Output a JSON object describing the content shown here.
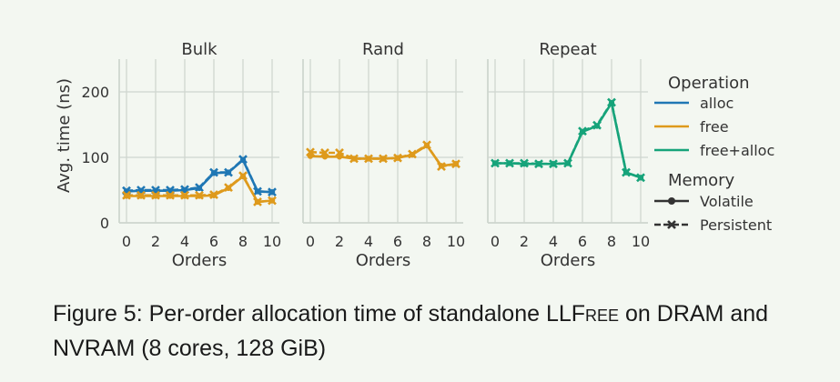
{
  "colors": {
    "background": "#f3f7f1",
    "grid": "#cfd6cf",
    "axis_text": "#333333",
    "alloc": "#1f77b4",
    "free": "#de9a1c",
    "free_alloc": "#16a37a"
  },
  "chart_data": {
    "type": "line",
    "ylabel": "Avg. time (ns)",
    "yticks": [
      0,
      100,
      200
    ],
    "ylim": [
      0,
      250
    ],
    "xticks": [
      0,
      2,
      4,
      6,
      8,
      10
    ],
    "xlim": [
      -0.5,
      10.5
    ],
    "grid": true,
    "panels": [
      {
        "title": "Bulk",
        "xlabel": "Orders",
        "series": [
          {
            "operation": "alloc",
            "memory": "Volatile",
            "x": [
              0,
              1,
              2,
              3,
              4,
              5,
              6,
              7,
              8,
              9,
              10
            ],
            "values": [
              48,
              49,
              49,
              49,
              50,
              53,
              76,
              77,
              96,
              48,
              47
            ]
          },
          {
            "operation": "alloc",
            "memory": "Persistent",
            "x": [
              0,
              1,
              2,
              3,
              4,
              5,
              6,
              7,
              8,
              9,
              10
            ],
            "values": [
              49,
              50,
              50,
              50,
              51,
              54,
              77,
              77,
              97,
              48,
              47
            ]
          },
          {
            "operation": "free",
            "memory": "Volatile",
            "x": [
              0,
              1,
              2,
              3,
              4,
              5,
              6,
              7,
              8,
              9,
              10
            ],
            "values": [
              41,
              41,
              41,
              41,
              41,
              41,
              42,
              53,
              71,
              32,
              34
            ]
          },
          {
            "operation": "free",
            "memory": "Persistent",
            "x": [
              0,
              1,
              2,
              3,
              4,
              5,
              6,
              7,
              8,
              9,
              10
            ],
            "values": [
              42,
              42,
              42,
              42,
              42,
              42,
              43,
              54,
              72,
              32,
              34
            ]
          }
        ]
      },
      {
        "title": "Rand",
        "xlabel": "Orders",
        "series": [
          {
            "operation": "free",
            "memory": "Volatile",
            "x": [
              0,
              1,
              2,
              3,
              4,
              5,
              6,
              7,
              8,
              9,
              10
            ],
            "values": [
              102,
              101,
              101,
              98,
              98,
              98,
              99,
              104,
              118,
              87,
              90
            ]
          },
          {
            "operation": "free",
            "memory": "Persistent",
            "x": [
              0,
              1,
              2,
              3,
              4,
              5,
              6,
              7,
              8,
              9,
              10
            ],
            "values": [
              108,
              107,
              107,
              98,
              98,
              98,
              99,
              105,
              119,
              86,
              90
            ]
          }
        ]
      },
      {
        "title": "Repeat",
        "xlabel": "Orders",
        "series": [
          {
            "operation": "free+alloc",
            "memory": "Volatile",
            "x": [
              0,
              1,
              2,
              3,
              4,
              5,
              6,
              7,
              8,
              9,
              10
            ],
            "values": [
              91,
              91,
              90,
              90,
              90,
              91,
              139,
              148,
              183,
              77,
              69
            ]
          },
          {
            "operation": "free+alloc",
            "memory": "Persistent",
            "x": [
              0,
              1,
              2,
              3,
              4,
              5,
              6,
              7,
              8,
              9,
              10
            ],
            "values": [
              91,
              91,
              91,
              90,
              90,
              91,
              140,
              149,
              184,
              77,
              69
            ]
          }
        ]
      }
    ],
    "legend": {
      "placement": "right",
      "operation_title": "Operation",
      "operations": [
        "alloc",
        "free",
        "free+alloc"
      ],
      "memory_title": "Memory",
      "memories": [
        "Volatile",
        "Persistent"
      ]
    }
  },
  "caption": {
    "prefix": "Figure 5: Per-order allocation time of standalone LL",
    "smallcaps": "Free",
    "suffix": " on DRAM and NVRAM (8 cores, 128 GiB)"
  }
}
